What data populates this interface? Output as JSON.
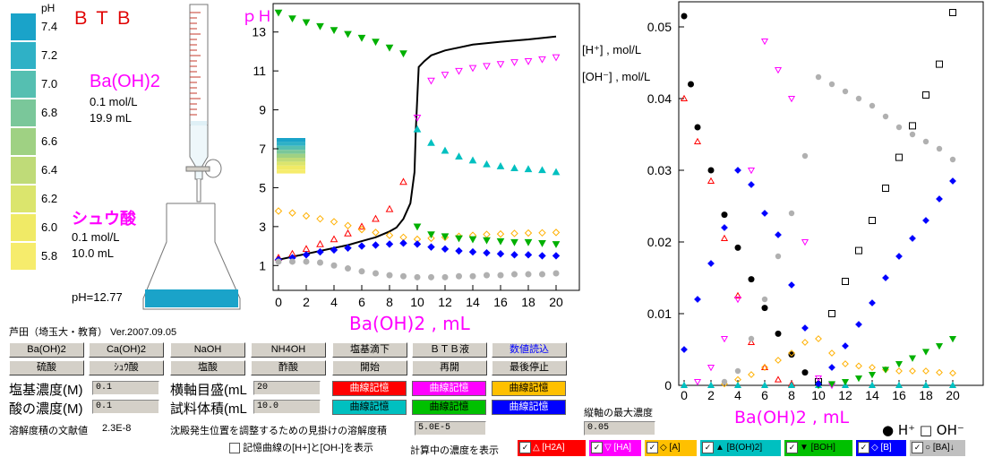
{
  "btb_panel": {
    "title": "ＢＴＢ",
    "ph_header": "pH",
    "scale": [
      {
        "ph": "7.4",
        "color": "#1aa3c9"
      },
      {
        "ph": "7.2",
        "color": "#2fb1c6"
      },
      {
        "ph": "7.0",
        "color": "#55bfb1"
      },
      {
        "ph": "6.8",
        "color": "#7ac79a"
      },
      {
        "ph": "6.6",
        "color": "#9fd183"
      },
      {
        "ph": "6.4",
        "color": "#bfdb78"
      },
      {
        "ph": "6.2",
        "color": "#dbe56d"
      },
      {
        "ph": "6.0",
        "color": "#f0ea66"
      },
      {
        "ph": "5.8",
        "color": "#f6ec6c"
      }
    ]
  },
  "burette": {
    "reagent": "Ba(OH)2",
    "concentration": "0.1 mol/L",
    "volume": "19.9 mL"
  },
  "flask": {
    "reagent": "シュウ酸",
    "concentration": "0.1 mol/L",
    "volume": "10.0 mL",
    "ph_readout": "pH=12.77",
    "solution_color": "#1aa3c9"
  },
  "author_line": "芦田（埼玉大・教育） Ver.2007.09.05",
  "buttons": {
    "base_row": [
      "Ba(OH)2",
      "Ca(OH)2",
      "NaOH",
      "NH4OH",
      "塩基滴下",
      "ＢＴＢ液",
      "数値読込"
    ],
    "acid_row": [
      "硫酸",
      "ｼｭｳ酸",
      "塩酸",
      "酢酸",
      "開始",
      "再開",
      "最後停止"
    ],
    "curve_memory": "曲線記憶"
  },
  "inputs": {
    "base_conc_label": "塩基濃度(M)",
    "base_conc_value": "0.1",
    "acid_conc_label": "酸の濃度(M)",
    "acid_conc_value": "0.1",
    "xaxis_label": "横軸目盛(mL",
    "xaxis_value": "20",
    "sample_vol_label": "試料体積(mL",
    "sample_vol_value": "10.0",
    "ksp_lit_label": "溶解度積の文献値",
    "ksp_lit_value": "2.3E-8",
    "ksp_apparent_label": "沈殿発生位置を調整するための見掛けの溶解度積",
    "ksp_apparent_value": "5.0E-5",
    "ymax_label": "縦軸の最大濃度",
    "ymax_value": "0.05",
    "show_memory_label": "記憶曲線の[H+]と[OH-]を表示",
    "show_calc_label": "計算中の濃度を表示"
  },
  "species_checks": [
    {
      "label": "△ [H2A]",
      "color": "#ff0000",
      "text_color": "#ffffff"
    },
    {
      "label": "▽ [HA]",
      "color": "#ff00ff",
      "text_color": "#ffffff"
    },
    {
      "label": "◇ [A]",
      "color": "#ffc000",
      "text_color": "#000000"
    },
    {
      "label": "▲ [B(OH)2]",
      "color": "#00c0c0",
      "text_color": "#000000"
    },
    {
      "label": "▼ [BOH]",
      "color": "#00c000",
      "text_color": "#000000"
    },
    {
      "label": "◇ [B]",
      "color": "#0000ff",
      "text_color": "#ffffff"
    },
    {
      "label": "○ [BA]↓",
      "color": "#c0c0c0",
      "text_color": "#000000"
    }
  ],
  "ph_chart": {
    "ylabel": "ｐＨ",
    "xlabel": "Ba(OH)2 , mL",
    "y_ticks": [
      "1",
      "3",
      "5",
      "7",
      "9",
      "11",
      "13"
    ],
    "x_ticks": [
      "0",
      "2",
      "4",
      "6",
      "8",
      "10",
      "12",
      "14",
      "16",
      "18",
      "20"
    ]
  },
  "conc_chart": {
    "ylabel_h": "[H⁺] , mol/L",
    "ylabel_oh": "[OH⁻] , mol/L",
    "xlabel": "Ba(OH)2 , mL",
    "y_ticks": [
      "0",
      "0.01",
      "0.02",
      "0.03",
      "0.04",
      "0.05"
    ],
    "x_ticks": [
      "0",
      "2",
      "4",
      "6",
      "8",
      "10",
      "12",
      "14",
      "16",
      "18",
      "20"
    ],
    "legend": "● H⁺ □ OH⁻"
  },
  "chart_data": [
    {
      "type": "scatter",
      "ylabel": "ｐＨ",
      "xlabel": "Ba(OH)2 , mL",
      "xlim": [
        0,
        20
      ],
      "ylim": [
        0,
        14
      ],
      "series": [
        {
          "color": "#000000",
          "x": [
            0,
            1,
            2,
            3,
            4,
            5,
            6,
            7,
            8,
            8.5,
            9,
            9.5,
            9.8,
            9.9,
            10,
            10.1,
            10.5,
            11,
            12,
            14,
            16,
            18,
            20
          ],
          "y": [
            1.3,
            1.45,
            1.6,
            1.75,
            1.9,
            2.05,
            2.25,
            2.45,
            2.75,
            2.95,
            3.4,
            4.2,
            5.8,
            8.0,
            9.6,
            11.2,
            11.5,
            11.8,
            12.05,
            12.35,
            12.5,
            12.62,
            12.77
          ]
        },
        {
          "color": "#ff0000",
          "x": [
            0,
            1,
            2,
            3,
            4,
            5,
            6,
            7,
            8,
            9
          ],
          "y": [
            1.4,
            1.6,
            1.85,
            2.1,
            2.35,
            2.65,
            3.0,
            3.4,
            3.9,
            5.3
          ]
        },
        {
          "color": "#ff00ff",
          "x": [
            10,
            11,
            12,
            13,
            14,
            15,
            16,
            17,
            18,
            19,
            20
          ],
          "y": [
            8.6,
            10.5,
            10.8,
            11.0,
            11.15,
            11.25,
            11.35,
            11.45,
            11.5,
            11.6,
            11.7
          ]
        },
        {
          "color": "#ffb000",
          "x": [
            0,
            1,
            2,
            3,
            4,
            5,
            6,
            7,
            8,
            9,
            10,
            11,
            12,
            13,
            14,
            15,
            16,
            17,
            18,
            19,
            20
          ],
          "y": [
            3.8,
            3.7,
            3.55,
            3.4,
            3.25,
            3.05,
            2.85,
            2.7,
            2.55,
            2.45,
            2.35,
            2.4,
            2.45,
            2.5,
            2.55,
            2.6,
            2.62,
            2.65,
            2.67,
            2.68,
            2.7
          ]
        },
        {
          "color": "#00c0c0",
          "x": [
            10,
            11,
            12,
            13,
            14,
            15,
            16,
            17,
            18,
            19,
            20
          ],
          "y": [
            8.0,
            7.3,
            6.9,
            6.6,
            6.4,
            6.2,
            6.1,
            6.0,
            5.95,
            5.9,
            5.8
          ]
        },
        {
          "color": "#00b000",
          "x": [
            0,
            1,
            2,
            3,
            4,
            5,
            6,
            7,
            8,
            9,
            10,
            11,
            12,
            13,
            14,
            15,
            16,
            17,
            18,
            19,
            20
          ],
          "y": [
            14.0,
            13.7,
            13.5,
            13.3,
            13.1,
            12.9,
            12.7,
            12.5,
            12.2,
            11.9,
            3.0,
            2.6,
            2.5,
            2.4,
            2.35,
            2.3,
            2.25,
            2.2,
            2.2,
            2.15,
            2.1
          ]
        },
        {
          "color": "#0000ff",
          "x": [
            0,
            1,
            2,
            3,
            4,
            5,
            6,
            7,
            8,
            9,
            10,
            11,
            12,
            13,
            14,
            15,
            16,
            17,
            18,
            19,
            20
          ],
          "y": [
            1.3,
            1.4,
            1.55,
            1.7,
            1.8,
            1.9,
            2.0,
            2.05,
            2.1,
            2.15,
            2.1,
            1.95,
            1.85,
            1.75,
            1.7,
            1.65,
            1.6,
            1.55,
            1.55,
            1.5,
            1.5
          ]
        },
        {
          "color": "#b0b0b0",
          "x": [
            0,
            1,
            2,
            3,
            4,
            5,
            6,
            7,
            8,
            9,
            10,
            11,
            12,
            13,
            14,
            15,
            16,
            17,
            18,
            19,
            20
          ],
          "y": [
            1.2,
            1.2,
            1.2,
            1.15,
            1.0,
            0.85,
            0.7,
            0.6,
            0.5,
            0.45,
            0.4,
            0.4,
            0.4,
            0.45,
            0.45,
            0.5,
            0.5,
            0.55,
            0.55,
            0.55,
            0.6
          ]
        }
      ]
    },
    {
      "type": "scatter",
      "ylabel": "[H⁺] , mol/L  [OH⁻] , mol/L",
      "xlabel": "Ba(OH)2 , mL",
      "xlim": [
        0,
        20
      ],
      "ylim": [
        0,
        0.05
      ],
      "series": [
        {
          "name": "H⁺",
          "color": "#000000",
          "x": [
            0,
            0.5,
            1,
            2,
            3,
            4,
            5,
            6,
            7,
            8,
            9,
            10
          ],
          "y": [
            0.0515,
            0.042,
            0.036,
            0.03,
            0.0238,
            0.0192,
            0.0148,
            0.0108,
            0.0072,
            0.0043,
            0.0018,
            0.0002
          ]
        },
        {
          "name": "OH⁻",
          "color": "#000000",
          "x": [
            10,
            11,
            12,
            13,
            14,
            15,
            16,
            17,
            18,
            19,
            20
          ],
          "y": [
            0.0005,
            0.01,
            0.0145,
            0.0188,
            0.023,
            0.0275,
            0.0318,
            0.0362,
            0.0405,
            0.0448,
            0.052
          ]
        },
        {
          "color": "#ff0000",
          "x": [
            0,
            1,
            2,
            3,
            4,
            5,
            6,
            7,
            8
          ],
          "y": [
            0.04,
            0.034,
            0.0285,
            0.0205,
            0.0125,
            0.006,
            0.0025,
            0.0008,
            0.0002
          ]
        },
        {
          "color": "#ff00ff",
          "x": [
            1,
            2,
            3,
            4,
            5,
            6,
            7,
            8,
            9,
            10,
            11
          ],
          "y": [
            0.0005,
            0.0025,
            0.0065,
            0.012,
            0.03,
            0.048,
            0.044,
            0.04,
            0.02,
            0.001,
            0.0
          ]
        },
        {
          "color": "#ffb000",
          "x": [
            3,
            4,
            5,
            6,
            7,
            8,
            9,
            10,
            11,
            12,
            13,
            14,
            15,
            16,
            17,
            18,
            19,
            20
          ],
          "y": [
            0.0002,
            0.0008,
            0.0015,
            0.0025,
            0.0035,
            0.0045,
            0.006,
            0.0065,
            0.0045,
            0.003,
            0.0027,
            0.0025,
            0.0022,
            0.002,
            0.002,
            0.002,
            0.0018,
            0.0017
          ]
        },
        {
          "color": "#00c0c0",
          "x": [
            0,
            2,
            4,
            6,
            8,
            10,
            12,
            14,
            16,
            18,
            20
          ],
          "y": [
            0,
            0,
            0,
            0,
            0,
            0,
            0,
            0,
            0,
            0,
            0
          ]
        },
        {
          "color": "#00b000",
          "x": [
            10,
            11,
            12,
            13,
            14,
            15,
            16,
            17,
            18,
            19,
            20
          ],
          "y": [
            0.0,
            0.0002,
            0.0005,
            0.001,
            0.0015,
            0.0022,
            0.003,
            0.0038,
            0.0047,
            0.0055,
            0.0065
          ]
        },
        {
          "color": "#0000ff",
          "x": [
            0,
            1,
            2,
            3,
            4,
            5,
            6,
            7,
            8,
            9,
            10,
            11,
            12,
            13,
            14,
            15,
            16,
            17,
            18,
            19,
            20
          ],
          "y": [
            0.005,
            0.012,
            0.017,
            0.022,
            0.03,
            0.028,
            0.024,
            0.021,
            0.014,
            0.008,
            0.0002,
            0.0025,
            0.0055,
            0.0085,
            0.0115,
            0.015,
            0.018,
            0.0205,
            0.023,
            0.026,
            0.0285
          ]
        },
        {
          "color": "#b0b0b0",
          "x": [
            3,
            4,
            5,
            6,
            7,
            8,
            9,
            10,
            11,
            12,
            13,
            14,
            15,
            16,
            17,
            18,
            19,
            20
          ],
          "y": [
            0.0005,
            0.002,
            0.0065,
            0.012,
            0.018,
            0.024,
            0.032,
            0.043,
            0.042,
            0.041,
            0.04,
            0.039,
            0.0375,
            0.036,
            0.035,
            0.034,
            0.033,
            0.0315
          ]
        }
      ]
    }
  ]
}
